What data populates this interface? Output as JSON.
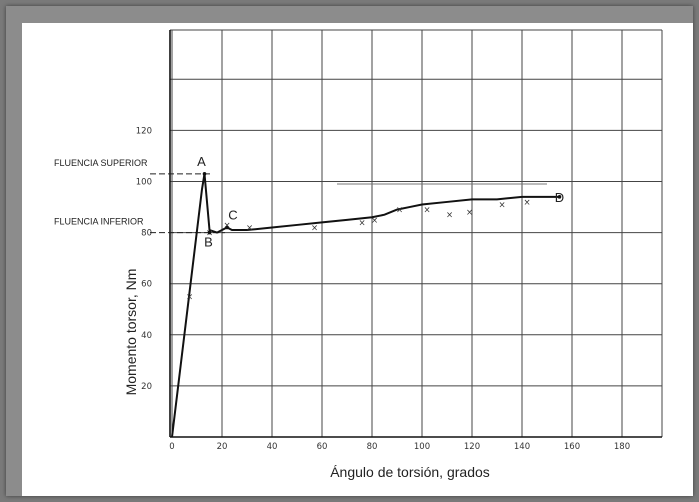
{
  "chart_data": {
    "type": "line",
    "title": "",
    "xlabel": "Ángulo de torsión, grados",
    "ylabel": "Momento torsor, Nm",
    "xlim": [
      0,
      190
    ],
    "ylim": [
      0,
      160
    ],
    "grid": true,
    "x_ticks": [
      {
        "value": 0,
        "label": "0"
      },
      {
        "value": 20,
        "label": "20"
      },
      {
        "value": 40,
        "label": "40"
      },
      {
        "value": 60,
        "label": "60"
      },
      {
        "value": 80,
        "label": "80"
      },
      {
        "value": 100,
        "label": "100"
      },
      {
        "value": 120,
        "label": "120"
      },
      {
        "value": 140,
        "label": "140"
      },
      {
        "value": 160,
        "label": "160"
      },
      {
        "value": 180,
        "label": "180"
      }
    ],
    "y_ticks": [
      {
        "value": 20,
        "label": "20"
      },
      {
        "value": 40,
        "label": "40"
      },
      {
        "value": 60,
        "label": "60"
      },
      {
        "value": 80,
        "label": "80"
      },
      {
        "value": 100,
        "label": "100"
      },
      {
        "value": 120,
        "label": "120"
      }
    ],
    "series": [
      {
        "x": [
          0,
          12,
          13,
          15,
          18,
          20,
          22,
          24,
          30,
          40,
          50,
          60,
          70,
          80,
          85,
          90,
          95,
          100,
          110,
          120,
          130,
          140,
          150,
          155
        ],
        "y": [
          0,
          97,
          103,
          81,
          80,
          81,
          82,
          81,
          81,
          82,
          83,
          84,
          85,
          86,
          87,
          89,
          90,
          91,
          92,
          93,
          93,
          94,
          94,
          94
        ]
      }
    ],
    "markers": [
      {
        "x": 7,
        "y": 55
      },
      {
        "x": 15,
        "y": 80
      },
      {
        "x": 22,
        "y": 83
      },
      {
        "x": 31,
        "y": 82
      },
      {
        "x": 57,
        "y": 82
      },
      {
        "x": 76,
        "y": 84
      },
      {
        "x": 81,
        "y": 85
      },
      {
        "x": 91,
        "y": 89
      },
      {
        "x": 102,
        "y": 89
      },
      {
        "x": 111,
        "y": 87
      },
      {
        "x": 119,
        "y": 88
      },
      {
        "x": 132,
        "y": 91
      },
      {
        "x": 142,
        "y": 92
      }
    ],
    "points": [
      {
        "label": "A",
        "x": 13,
        "y": 103
      },
      {
        "label": "B",
        "x": 15,
        "y": 80
      },
      {
        "label": "C",
        "x": 22,
        "y": 82
      },
      {
        "label": "D",
        "x": 155,
        "y": 94
      }
    ],
    "reference_lines": [
      {
        "label": "FLUENCIA SUPERIOR",
        "y": 103
      },
      {
        "label": "FLUENCIA INFERIOR",
        "y": 80
      },
      {
        "label": "",
        "y": 99
      }
    ]
  }
}
